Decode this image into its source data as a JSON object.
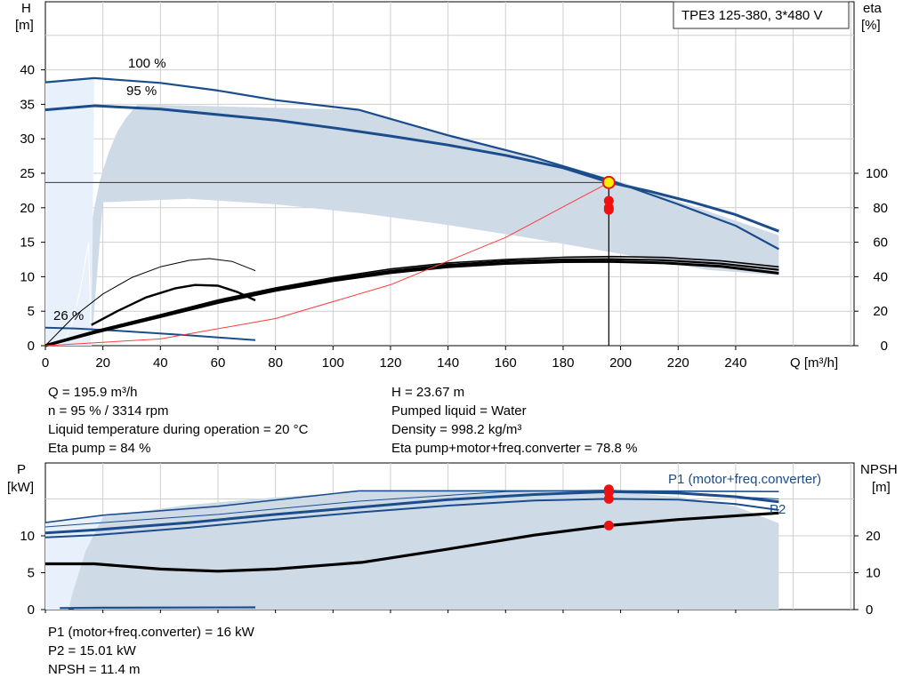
{
  "colors": {
    "curve_blue": "#1b4d8c",
    "envelope_fill": "#cfdae7",
    "envelope_light": "#e8f1fb",
    "system_curve": "#ff3b3b",
    "duty_point_red": "#ee1111",
    "duty_point_yellow": "#ffee00",
    "grid": "#cfcfcf"
  },
  "chart_data": [
    {
      "id": "head",
      "type": "line",
      "title": "TPE3 125-380, 3*480 V",
      "xlabel": "Q [m³/h]",
      "ylabel_left": [
        "H",
        "[m]"
      ],
      "ylabel_right": [
        "eta",
        "[%]"
      ],
      "xlim": [
        0,
        280
      ],
      "ylim_left": [
        0,
        45
      ],
      "ylim_right": [
        0,
        100
      ],
      "x_ticks": [
        "0",
        "20",
        "40",
        "60",
        "80",
        "100",
        "120",
        "140",
        "160",
        "180",
        "200",
        "220",
        "240"
      ],
      "y_ticks_left": [
        "0",
        "5",
        "10",
        "15",
        "20",
        "25",
        "30",
        "35",
        "40"
      ],
      "y_ticks_right": [
        "0",
        "20",
        "40",
        "60",
        "80",
        "100"
      ],
      "grid": true,
      "curve_labels": [
        {
          "text": "100 %",
          "x": 29,
          "y": 40.2
        },
        {
          "text": "95 %",
          "x": 28,
          "y": 36.2
        },
        {
          "text": "26 %",
          "x": 3,
          "y": 3.6
        }
      ],
      "envelope": [
        [
          16,
          0
        ],
        [
          5,
          0
        ],
        [
          7,
          1
        ],
        [
          9,
          3
        ],
        [
          11,
          6
        ],
        [
          13,
          10
        ],
        [
          15,
          15
        ],
        [
          17,
          20
        ],
        [
          19,
          24
        ],
        [
          22,
          28
        ],
        [
          25,
          31
        ],
        [
          28,
          33
        ],
        [
          32,
          35
        ],
        [
          109,
          34.2
        ],
        [
          197,
          24.2
        ],
        [
          255,
          16
        ],
        [
          255,
          10.2
        ],
        [
          230,
          11
        ],
        [
          200,
          13.3
        ],
        [
          170,
          15.5
        ],
        [
          140,
          17.5
        ],
        [
          110,
          19.2
        ],
        [
          80,
          20.5
        ],
        [
          50,
          21.3
        ],
        [
          20,
          20.8
        ],
        [
          16,
          0
        ]
      ],
      "series": [
        {
          "name": "100 %",
          "kind": "head",
          "width": 2.2,
          "points": [
            [
              0,
              38.2
            ],
            [
              17,
              38.8
            ],
            [
              40,
              38.1
            ],
            [
              60,
              37
            ],
            [
              80,
              35.6
            ],
            [
              109,
              34.2
            ],
            [
              140,
              30.5
            ],
            [
              170,
              27.3
            ],
            [
              197,
              23.9
            ],
            [
              220,
              20.5
            ],
            [
              240,
              17.4
            ],
            [
              255,
              14
            ]
          ]
        },
        {
          "name": "95 %",
          "kind": "head",
          "width": 3,
          "points": [
            [
              0,
              34.2
            ],
            [
              17,
              34.8
            ],
            [
              40,
              34.3
            ],
            [
              60,
              33.5
            ],
            [
              80,
              32.7
            ],
            [
              100,
              31.6
            ],
            [
              120,
              30.4
            ],
            [
              140,
              29.1
            ],
            [
              160,
              27.6
            ],
            [
              180,
              25.8
            ],
            [
              196,
              23.7
            ],
            [
              210,
              22.4
            ],
            [
              225,
              20.8
            ],
            [
              240,
              19
            ],
            [
              255,
              16.6
            ]
          ]
        },
        {
          "name": "26 %",
          "kind": "head",
          "width": 2,
          "points": [
            [
              0,
              2.6
            ],
            [
              10,
              2.5
            ],
            [
              20,
              2.3
            ],
            [
              35,
              1.9
            ],
            [
              50,
              1.5
            ],
            [
              60,
              1.2
            ],
            [
              73,
              0.8
            ]
          ]
        },
        {
          "name": "eta 100 %",
          "kind": "eta",
          "width": 1.6,
          "points": [
            [
              0,
              0.5
            ],
            [
              17,
              8.5
            ],
            [
              40,
              18
            ],
            [
              60,
              26.5
            ],
            [
              80,
              33.5
            ],
            [
              100,
              39.5
            ],
            [
              120,
              44.5
            ],
            [
              140,
              48
            ],
            [
              160,
              50
            ],
            [
              180,
              51.3
            ],
            [
              197,
              51.7
            ],
            [
              215,
              51.2
            ],
            [
              235,
              49.2
            ],
            [
              255,
              45.7
            ]
          ]
        },
        {
          "name": "eta 95 %",
          "kind": "eta",
          "width": 3,
          "points": [
            [
              0,
              0
            ],
            [
              17,
              7.5
            ],
            [
              40,
              16.8
            ],
            [
              60,
              25
            ],
            [
              80,
              32
            ],
            [
              100,
              37.7
            ],
            [
              120,
              42.3
            ],
            [
              140,
              45.7
            ],
            [
              160,
              47.7
            ],
            [
              180,
              48.7
            ],
            [
              196,
              48.8
            ],
            [
              215,
              48
            ],
            [
              235,
              46
            ],
            [
              255,
              42
            ]
          ]
        },
        {
          "name": "eta system",
          "kind": "eta",
          "width": 2.2,
          "points": [
            [
              0,
              0
            ],
            [
              17,
              8
            ],
            [
              40,
              17.4
            ],
            [
              60,
              25.7
            ],
            [
              80,
              32.7
            ],
            [
              100,
              38.6
            ],
            [
              120,
              43.4
            ],
            [
              140,
              46.9
            ],
            [
              160,
              49
            ],
            [
              180,
              50
            ],
            [
              196,
              50.2
            ],
            [
              215,
              49.6
            ],
            [
              235,
              47.6
            ],
            [
              255,
              44
            ]
          ]
        },
        {
          "name": "eta 26 % thin",
          "kind": "eta",
          "width": 1,
          "points": [
            [
              0,
              0
            ],
            [
              10,
              17
            ],
            [
              20,
              30
            ],
            [
              30,
              39.5
            ],
            [
              40,
              45.7
            ],
            [
              50,
              49.5
            ],
            [
              57,
              50.5
            ],
            [
              65,
              48.8
            ],
            [
              72,
              44.2
            ],
            [
              73,
              43.5
            ]
          ]
        },
        {
          "name": "eta 26 %",
          "kind": "eta",
          "width": 2.4,
          "points": [
            [
              16,
              12
            ],
            [
              25,
              20
            ],
            [
              35,
              28
            ],
            [
              45,
              33.2
            ],
            [
              52,
              35.2
            ],
            [
              60,
              34.8
            ],
            [
              67,
              31
            ],
            [
              73,
              26.3
            ]
          ]
        },
        {
          "name": "system curve",
          "kind": "system",
          "width": 1,
          "points": [
            [
              0,
              0
            ],
            [
              40,
              0.98
            ],
            [
              80,
              3.93
            ],
            [
              120,
              8.84
            ],
            [
              160,
              15.7
            ],
            [
              196,
              23.67
            ]
          ]
        }
      ],
      "duty_point": {
        "q": 195.9,
        "h": 23.67
      },
      "eta_markers": [
        84,
        80,
        78.8
      ]
    },
    {
      "id": "power",
      "type": "line",
      "ylabel_left": [
        "P",
        "[kW]"
      ],
      "ylabel_right": [
        "NPSH",
        "[m]"
      ],
      "xlim": [
        0,
        280
      ],
      "ylim_left": [
        0,
        19
      ],
      "ylim_right": [
        0,
        38
      ],
      "y_ticks_left": [
        "0",
        "5",
        "10"
      ],
      "y_ticks_right": [
        "0",
        "10",
        "20"
      ],
      "grid": true,
      "legend_labels": [
        "P1 (motor+freq.converter)",
        "P2"
      ],
      "envelope": [
        [
          10,
          0
        ],
        [
          255,
          0
        ],
        [
          255,
          11.7
        ],
        [
          240,
          14
        ],
        [
          220,
          15.3
        ],
        [
          196,
          16
        ],
        [
          160,
          16
        ],
        [
          120,
          16
        ],
        [
          109,
          16
        ],
        [
          80,
          15.2
        ],
        [
          50,
          14.2
        ],
        [
          20,
          12.6
        ],
        [
          14,
          8
        ],
        [
          10,
          3
        ],
        [
          8,
          0.6
        ],
        [
          10,
          0
        ]
      ],
      "series": [
        {
          "name": "P1 100 %",
          "kind": "power",
          "width": 1.6,
          "points": [
            [
              0,
              11.8
            ],
            [
              20,
              12.8
            ],
            [
              60,
              14
            ],
            [
              109,
              16.1
            ],
            [
              160,
              16.1
            ],
            [
              196,
              16.1
            ],
            [
              255,
              16
            ]
          ]
        },
        {
          "name": "P1 95 %",
          "kind": "power",
          "width": 3,
          "points": [
            [
              0,
              10.4
            ],
            [
              17,
              10.8
            ],
            [
              50,
              11.8
            ],
            [
              80,
              12.9
            ],
            [
              110,
              13.9
            ],
            [
              140,
              14.9
            ],
            [
              170,
              15.6
            ],
            [
              196,
              16
            ],
            [
              220,
              15.8
            ],
            [
              240,
              15.3
            ],
            [
              255,
              14.6
            ]
          ]
        },
        {
          "name": "P1 thin",
          "kind": "power",
          "width": 1,
          "points": [
            [
              0,
              11.2
            ],
            [
              20,
              11.8
            ],
            [
              60,
              12.9
            ],
            [
              109,
              14.7
            ],
            [
              160,
              16
            ],
            [
              196,
              16.2
            ],
            [
              255,
              15
            ]
          ]
        },
        {
          "name": "P2",
          "kind": "power",
          "width": 2,
          "points": [
            [
              0,
              9.8
            ],
            [
              17,
              10.1
            ],
            [
              50,
              11.1
            ],
            [
              80,
              12.2
            ],
            [
              110,
              13.2
            ],
            [
              140,
              14.1
            ],
            [
              170,
              14.8
            ],
            [
              196,
              15.01
            ],
            [
              220,
              14.9
            ],
            [
              240,
              14.3
            ],
            [
              255,
              13.5
            ]
          ]
        },
        {
          "name": "P 26 %",
          "kind": "power",
          "width": 2.2,
          "points": [
            [
              5,
              0.2
            ],
            [
              20,
              0.25
            ],
            [
              73,
              0.3
            ]
          ]
        },
        {
          "name": "NPSH",
          "kind": "npsh",
          "width": 3.2,
          "points": [
            [
              0,
              6.2
            ],
            [
              17,
              6.2
            ],
            [
              40,
              5.5
            ],
            [
              60,
              5.2
            ],
            [
              80,
              5.5
            ],
            [
              110,
              6.4
            ],
            [
              140,
              8.2
            ],
            [
              170,
              10.1
            ],
            [
              196,
              11.4
            ],
            [
              220,
              12.2
            ],
            [
              255,
              13.1
            ]
          ]
        }
      ],
      "duty_markers": [
        16.3,
        15.9,
        15.01
      ],
      "npsh_marker": 11.4
    }
  ],
  "readouts": {
    "q": "Q = 195.9 m³/h",
    "h": "H = 23.67 m",
    "n": "n = 95 % / 3314 rpm",
    "pumped_liquid": "Pumped liquid = Water",
    "liquid_temp": "Liquid temperature during operation = 20 °C",
    "density": "Density = 998.2 kg/m³",
    "eta_pump": "Eta pump = 84 %",
    "eta_total": "Eta pump+motor+freq.converter = 78.8 %",
    "p1": "P1 (motor+freq.converter) = 16 kW",
    "p2": "P2 = 15.01 kW",
    "npsh": "NPSH = 11.4 m"
  }
}
